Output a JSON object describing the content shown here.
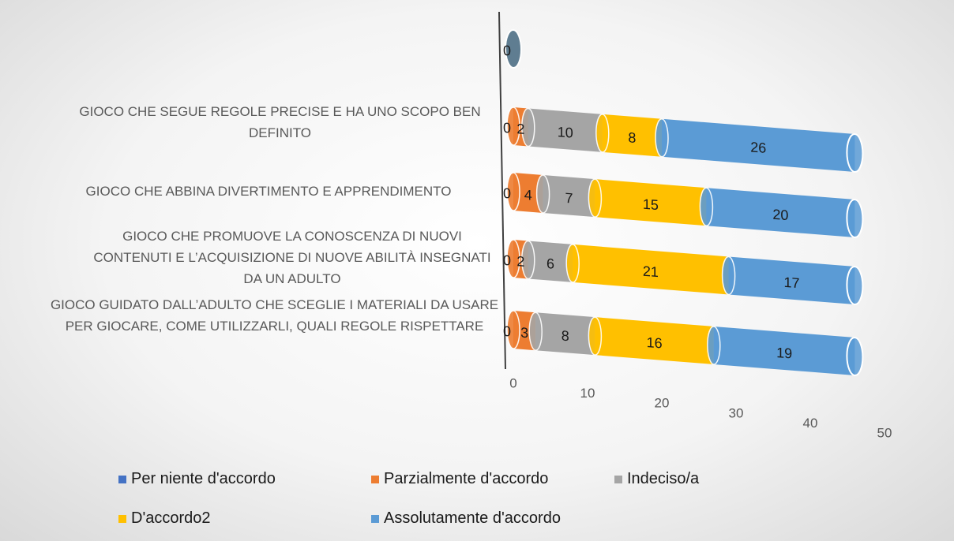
{
  "chart_data": {
    "type": "bar",
    "orientation": "horizontal",
    "stacked": true,
    "categories": [
      null,
      "GIOCO CHE SEGUE REGOLE PRECISE E HA UNO SCOPO BEN DEFINITO",
      "GIOCO CHE ABBINA DIVERTIMENTO E APPRENDIMENTO",
      "GIOCO CHE PROMUOVE LA CONOSCENZA DI NUOVI CONTENUTI E L’ACQUISIZIONE DI NUOVE ABILITÀ INSEGNATI DA UN ADULTO",
      "GIOCO GUIDATO DALL’ADULTO CHE SCEGLIE I MATERIALI DA USARE PER GIOCARE, COME UTILIZZARLI, QUALI REGOLE RISPETTARE"
    ],
    "series": [
      {
        "name": "Per niente d'accordo",
        "color": "#4472c4",
        "values": [
          0,
          0,
          0,
          0,
          0
        ]
      },
      {
        "name": "Parzialmente d'accordo",
        "color": "#ed7d31",
        "values": [
          null,
          2,
          4,
          2,
          3
        ]
      },
      {
        "name": "Indeciso/a",
        "color": "#a5a5a5",
        "values": [
          null,
          10,
          7,
          6,
          8
        ]
      },
      {
        "name": "D'accordo2",
        "color": "#ffc000",
        "values": [
          null,
          8,
          15,
          21,
          16
        ]
      },
      {
        "name": "Assolutamente d'accordo",
        "color": "#5b9bd5",
        "values": [
          null,
          26,
          20,
          17,
          19
        ]
      }
    ],
    "xlim": [
      0,
      50
    ],
    "xticks": [
      0,
      10,
      20,
      30,
      40,
      50
    ],
    "legend": "bottom"
  }
}
